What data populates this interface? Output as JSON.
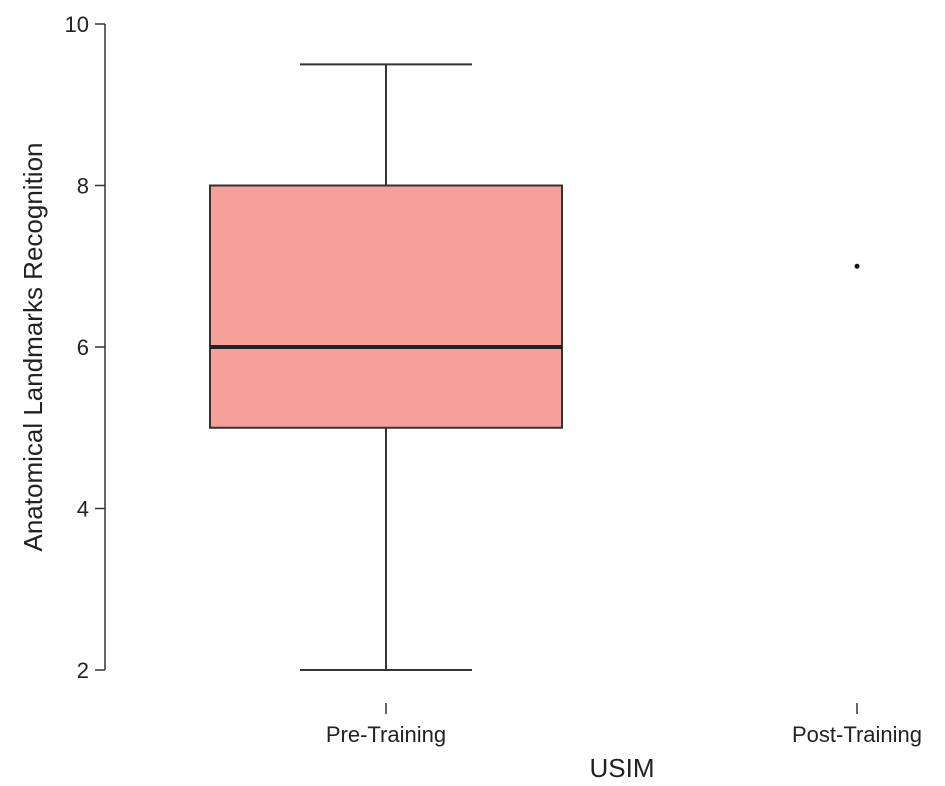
{
  "chart_data": {
    "type": "box",
    "xlabel": "USIM",
    "ylabel": "Anatomical Landmarks Recognition",
    "ylim": [
      2,
      10
    ],
    "yticks": [
      2,
      4,
      6,
      8,
      10
    ],
    "categories": [
      "Pre-Training",
      "Post-Training"
    ],
    "boxes": [
      {
        "category": "Pre-Training",
        "min": 2,
        "q1": 5,
        "median": 6,
        "q3": 8,
        "max": 9.5
      },
      {
        "category": "Post-Training",
        "min": 7,
        "q1": 7,
        "median": 7,
        "q3": 7,
        "max": 7
      }
    ],
    "box_fill": "#f6a09a",
    "box_stroke": "#333333",
    "grid": false,
    "legend": "none"
  }
}
